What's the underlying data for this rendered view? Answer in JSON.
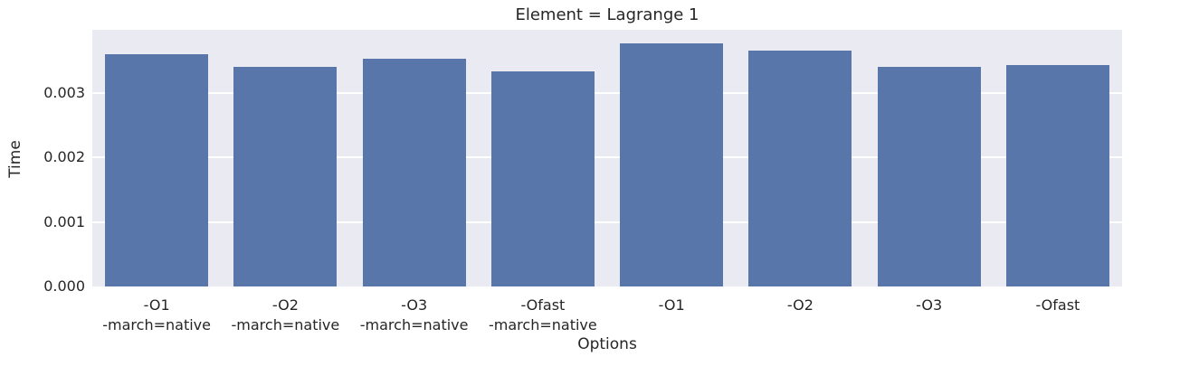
{
  "figure": {
    "title": "Element = Lagrange 1"
  },
  "chart_data": {
    "type": "bar",
    "title": "Element = Lagrange 1",
    "xlabel": "Options",
    "ylabel": "Time",
    "categories": [
      "-O1\n-march=native",
      "-O2\n-march=native",
      "-O3\n-march=native",
      "-Ofast\n-march=native",
      "-O1",
      "-O2",
      "-O3",
      "-Ofast"
    ],
    "values": [
      0.0036,
      0.00341,
      0.00353,
      0.00334,
      0.00377,
      0.00366,
      0.0034,
      0.00343
    ],
    "ylim": [
      0,
      0.00398
    ],
    "yticks": [
      0,
      0.001,
      0.002,
      0.003
    ],
    "ytick_labels": [
      "0.000",
      "0.001",
      "0.002",
      "0.003"
    ],
    "grid": true,
    "legend_position": "none",
    "bar_color": "#5876a9",
    "plot_bg_color": "#eaeaf2",
    "grid_color": "#ffffff",
    "text_color": "#262626"
  }
}
